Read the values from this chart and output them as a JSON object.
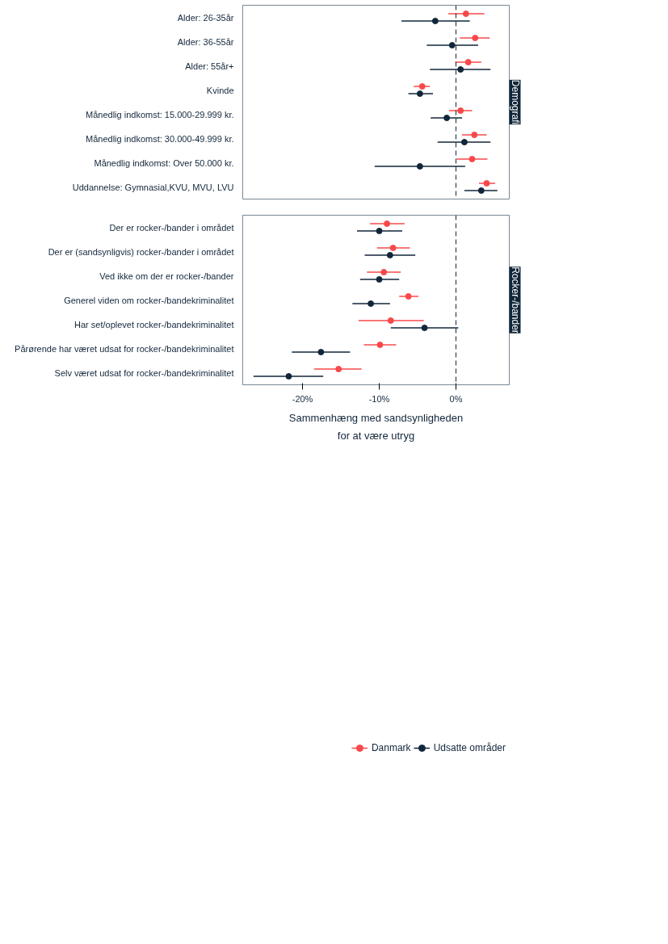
{
  "chart_data": [
    {
      "type": "scatter",
      "orientation": "horizontal",
      "title": "Demografi",
      "tick_labels": "y",
      "grid": false,
      "marker": "circle",
      "categories": [
        "Alder: 26-35år",
        "Alder: 36-55år",
        "Alder: 55år+",
        "Kvinde",
        "Månedlig indkomst: 15.000-29.999 kr.",
        "Månedlig indkomst: 30.000-49.999 kr.",
        "Månedlig indkomst: Over 50.000 kr.",
        "Uddannelse: Gymnasial,KVU, MVU, LVU"
      ],
      "xlim": [
        -27.8,
        6.95
      ],
      "ref_lines": [
        {
          "axis": "x",
          "value": 0,
          "line_style": "dashed",
          "color": "#12263a"
        }
      ],
      "series": [
        {
          "color": "#f8484a",
          "values": [
            1.3,
            2.5,
            1.6,
            -4.4,
            0.6,
            2.4,
            2.1,
            4.0
          ],
          "errors": [
            [
              -1.0,
              3.7
            ],
            [
              0.5,
              4.4
            ],
            [
              -0.1,
              3.3
            ],
            [
              -5.5,
              -3.4
            ],
            [
              -0.9,
              2.1
            ],
            [
              0.8,
              4.0
            ],
            [
              0.1,
              4.1
            ],
            [
              3.0,
              5.1
            ]
          ]
        },
        {
          "color": "#12263a",
          "values": [
            -2.7,
            -0.5,
            0.6,
            -4.7,
            -1.2,
            1.1,
            -4.7,
            3.3
          ],
          "errors": [
            [
              -7.1,
              1.8
            ],
            [
              -3.8,
              2.9
            ],
            [
              -3.4,
              4.5
            ],
            [
              -6.2,
              -3.0
            ],
            [
              -3.3,
              0.8
            ],
            [
              -2.4,
              4.5
            ],
            [
              -10.6,
              1.2
            ],
            [
              1.1,
              5.4
            ]
          ]
        }
      ]
    },
    {
      "type": "scatter",
      "orientation": "horizontal",
      "title": "Rocker-/bander",
      "grid": false,
      "marker": "circle",
      "legend": "bottom",
      "xlabel": "Sammenhæng med sandsynligheden\nfor at være utryg",
      "categories": [
        "Der er rocker-/bander i området",
        "Der er (sandsynligvis) rocker-/bander i området",
        "Ved ikke om der er rocker-/bander",
        "Generel viden om rocker-/bandekriminalitet",
        "Har set/oplevet rocker-/bandekriminalitet",
        "Pårørende har været udsat for rocker-/bandekriminalitet",
        "Selv været udsat for rocker-/bandekriminalitet"
      ],
      "xlim": [
        -27.8,
        6.95
      ],
      "xticks": [
        {
          "value": -20,
          "label": "-20%"
        },
        {
          "value": -10,
          "label": "-10%"
        },
        {
          "value": 0,
          "label": "0%"
        }
      ],
      "ref_lines": [
        {
          "axis": "x",
          "value": 0,
          "line_style": "dashed",
          "color": "#12263a"
        }
      ],
      "series": [
        {
          "name": "Danmark",
          "color": "#f8484a",
          "values": [
            -9.0,
            -8.2,
            -9.4,
            -6.2,
            -8.5,
            -9.9,
            -15.3
          ],
          "errors": [
            [
              -11.2,
              -6.7
            ],
            [
              -10.3,
              -6.0
            ],
            [
              -11.6,
              -7.2
            ],
            [
              -7.4,
              -4.9
            ],
            [
              -12.7,
              -4.2
            ],
            [
              -12.0,
              -7.8
            ],
            [
              -18.5,
              -12.3
            ]
          ]
        },
        {
          "name": "Udsatte områder",
          "color": "#12263a",
          "values": [
            -10.0,
            -8.6,
            -10.0,
            -11.1,
            -4.1,
            -17.6,
            -21.8
          ],
          "errors": [
            [
              -12.9,
              -7.0
            ],
            [
              -11.9,
              -5.3
            ],
            [
              -12.5,
              -7.4
            ],
            [
              -13.5,
              -8.6
            ],
            [
              -8.5,
              0.3
            ],
            [
              -21.4,
              -13.8
            ],
            [
              -26.4,
              -17.3
            ]
          ]
        }
      ]
    }
  ]
}
